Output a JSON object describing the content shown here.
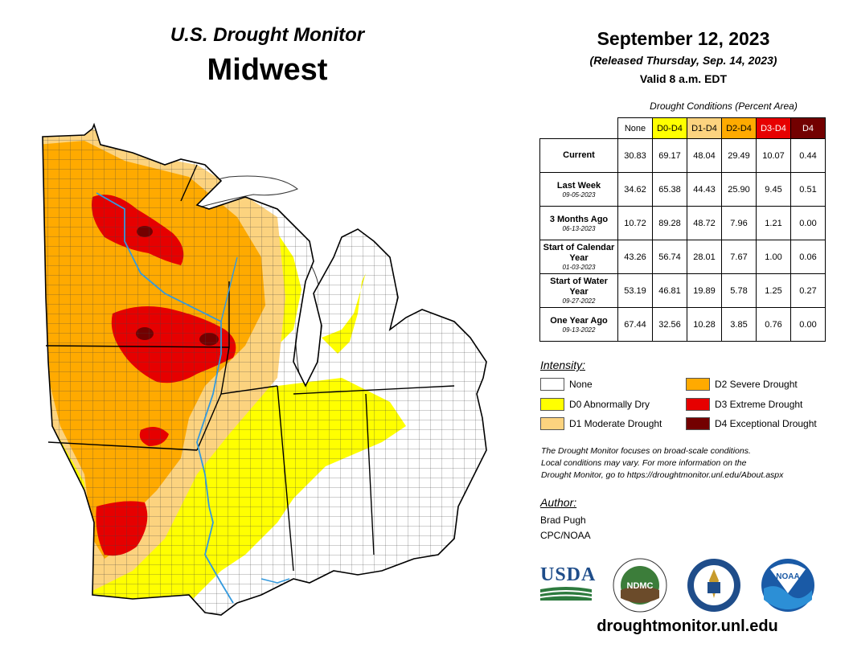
{
  "header": {
    "title": "U.S. Drought Monitor",
    "region": "Midwest",
    "date": "September 12, 2023",
    "released": "(Released Thursday, Sep. 14, 2023)",
    "valid": "Valid 8 a.m. EDT"
  },
  "table": {
    "caption": "Drought Conditions (Percent Area)",
    "columns": [
      {
        "label": "None",
        "color": "#ffffff"
      },
      {
        "label": "D0-D4",
        "color": "#ffff00"
      },
      {
        "label": "D1-D4",
        "color": "#fcd37f"
      },
      {
        "label": "D2-D4",
        "color": "#ffaa00"
      },
      {
        "label": "D3-D4",
        "color": "#e60000"
      },
      {
        "label": "D4",
        "color": "#730000"
      }
    ],
    "rows": [
      {
        "label": "Current",
        "date": "",
        "values": [
          "30.83",
          "69.17",
          "48.04",
          "29.49",
          "10.07",
          "0.44"
        ]
      },
      {
        "label": "Last Week",
        "date": "09-05-2023",
        "values": [
          "34.62",
          "65.38",
          "44.43",
          "25.90",
          "9.45",
          "0.51"
        ]
      },
      {
        "label": "3 Months Ago",
        "date": "06-13-2023",
        "values": [
          "10.72",
          "89.28",
          "48.72",
          "7.96",
          "1.21",
          "0.00"
        ]
      },
      {
        "label": "Start of Calendar Year",
        "date": "01-03-2023",
        "values": [
          "43.26",
          "56.74",
          "28.01",
          "7.67",
          "1.00",
          "0.06"
        ]
      },
      {
        "label": "Start of Water Year",
        "date": "09-27-2022",
        "values": [
          "53.19",
          "46.81",
          "19.89",
          "5.78",
          "1.25",
          "0.27"
        ]
      },
      {
        "label": "One Year Ago",
        "date": "09-13-2022",
        "values": [
          "67.44",
          "32.56",
          "10.28",
          "3.85",
          "0.76",
          "0.00"
        ]
      }
    ]
  },
  "legend": {
    "heading": "Intensity:",
    "items": [
      {
        "label": "None",
        "color": "#ffffff"
      },
      {
        "label": "D0 Abnormally Dry",
        "color": "#ffff00"
      },
      {
        "label": "D1 Moderate Drought",
        "color": "#fcd37f"
      },
      {
        "label": "D2 Severe Drought",
        "color": "#ffaa00"
      },
      {
        "label": "D3 Extreme Drought",
        "color": "#e60000"
      },
      {
        "label": "D4 Exceptional Drought",
        "color": "#730000"
      }
    ]
  },
  "note": {
    "line1": "The Drought Monitor focuses on broad-scale conditions.",
    "line2": "Local conditions may vary. For more information on the",
    "line3": "Drought Monitor, go to https://droughtmonitor.unl.edu/About.aspx"
  },
  "author": {
    "heading": "Author:",
    "name": "Brad Pugh",
    "org": "CPC/NOAA"
  },
  "logos": {
    "usda": "USDA",
    "ndmc": "NDMC",
    "noaa": "NOAA"
  },
  "footer_url": "droughtmonitor.unl.edu"
}
